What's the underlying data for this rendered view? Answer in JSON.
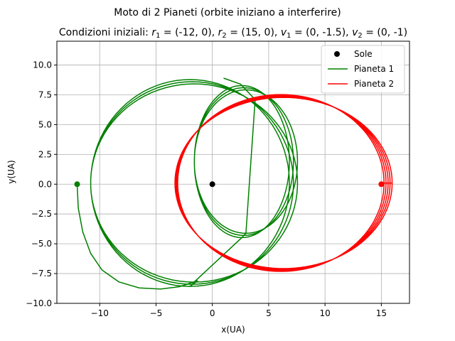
{
  "chart_data": {
    "type": "line",
    "suptitle": "Moto di 2 Pianeti (orbite iniziano a interferire)",
    "title": {
      "prefix": "Condizioni iniziali: ",
      "r1_label": "r",
      "r1_sub": "1",
      "r1_value": " = (-12, 0), ",
      "r2_label": "r",
      "r2_sub": "2",
      "r2_value": " = (15, 0), ",
      "v1_label": "v",
      "v1_sub": "1",
      "v1_value": " = (0, -1.5), ",
      "v2_label": "v",
      "v2_sub": "2",
      "v2_value": " = (0, -1)"
    },
    "xlabel": "x(UA)",
    "ylabel": "y(UA)",
    "xlim": [
      -13.8,
      17.5
    ],
    "ylim": [
      -10,
      12
    ],
    "xticks": [
      -10,
      -5,
      0,
      5,
      10,
      15
    ],
    "xtick_labels": [
      "−10",
      "−5",
      "0",
      "5",
      "10",
      "15"
    ],
    "yticks": [
      -10,
      -7.5,
      -5,
      -2.5,
      0,
      2.5,
      5,
      7.5,
      10
    ],
    "ytick_labels": [
      "−10.0",
      "−7.5",
      "−5.0",
      "−2.5",
      "0.0",
      "2.5",
      "5.0",
      "7.5",
      "10.0"
    ],
    "grid": true,
    "legend_position": "upper-right",
    "legend": [
      {
        "label": "Sole",
        "type": "marker",
        "color": "#000000"
      },
      {
        "label": "Pianeta 1",
        "type": "line",
        "color": "#008000"
      },
      {
        "label": "Pianeta 2",
        "type": "line",
        "color": "#ff0000"
      }
    ],
    "sun": {
      "x": 0,
      "y": 0,
      "color": "#000000"
    },
    "planet1": {
      "color": "#008000",
      "start": [
        -12,
        0
      ],
      "initial_arc": [
        [
          -12,
          0
        ],
        [
          -11.9,
          -2
        ],
        [
          -11.5,
          -4
        ],
        [
          -10.8,
          -5.8
        ],
        [
          -9.8,
          -7.2
        ],
        [
          -8.3,
          -8.2
        ],
        [
          -6.5,
          -8.7
        ],
        [
          -4.6,
          -8.8
        ],
        [
          -2.9,
          -8.6
        ],
        [
          -1.3,
          -8.1
        ]
      ],
      "loops": [
        {
          "cx": -1.8,
          "cy": 0.1,
          "rx": 9.0,
          "ry": 8.5,
          "count": 3
        },
        {
          "cx": 2.8,
          "cy": 1.9,
          "rx": 4.4,
          "ry": 6.2,
          "count": 3
        }
      ],
      "final_segment": [
        [
          3.8,
          7.1
        ],
        [
          2.5,
          8.4
        ],
        [
          1.0,
          8.9
        ]
      ]
    },
    "planet2": {
      "color": "#ff0000",
      "start": [
        15,
        0
      ],
      "ellipse": {
        "cx": 6.2,
        "cy": 0.1,
        "rx": 9.4,
        "ry": 7.3,
        "count": 5
      }
    }
  }
}
